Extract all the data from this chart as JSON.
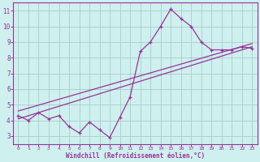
{
  "xlabel": "Windchill (Refroidissement éolien,°C)",
  "bg_color": "#cef0ee",
  "grid_color": "#aacccc",
  "line_color": "#993399",
  "xlim": [
    -0.5,
    23.5
  ],
  "ylim": [
    2.5,
    11.5
  ],
  "xticks": [
    0,
    1,
    2,
    3,
    4,
    5,
    6,
    7,
    8,
    9,
    10,
    11,
    12,
    13,
    14,
    15,
    16,
    17,
    18,
    19,
    20,
    21,
    22,
    23
  ],
  "yticks": [
    3,
    4,
    5,
    6,
    7,
    8,
    9,
    10,
    11
  ],
  "series1_x": [
    0,
    1,
    2,
    3,
    4,
    5,
    6,
    7,
    8,
    9,
    10,
    11,
    12,
    13,
    14,
    15,
    16,
    17,
    18,
    19,
    20,
    21,
    22,
    23
  ],
  "series1_y": [
    4.3,
    4.0,
    4.5,
    4.1,
    4.3,
    3.6,
    3.2,
    3.9,
    3.4,
    2.9,
    4.2,
    5.5,
    8.4,
    9.0,
    10.0,
    11.1,
    10.5,
    10.0,
    9.0,
    8.5,
    8.5,
    8.5,
    8.7,
    8.6
  ],
  "series2_x": [
    0,
    23
  ],
  "series2_y": [
    4.1,
    8.7
  ],
  "series3_x": [
    0,
    23
  ],
  "series3_y": [
    4.6,
    8.9
  ]
}
